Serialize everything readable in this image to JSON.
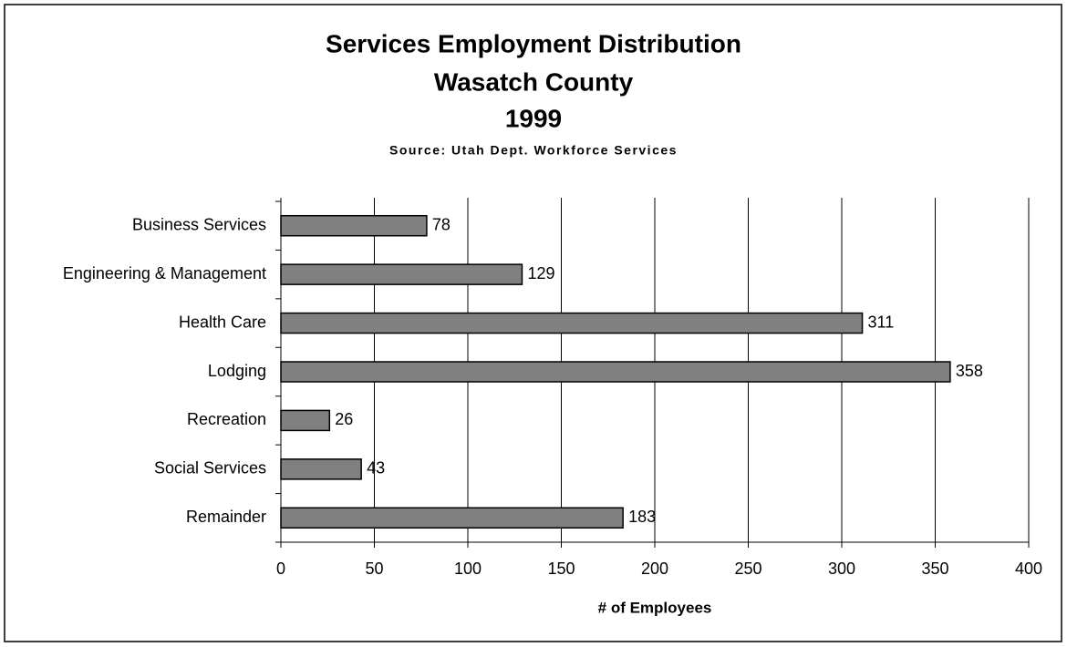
{
  "chart_data": {
    "type": "bar",
    "orientation": "horizontal",
    "title": [
      "Services Employment Distribution",
      "Wasatch County",
      "1999"
    ],
    "subtitle": "Source: Utah Dept. Workforce Services",
    "x_label": "# of Employees",
    "categories": [
      "Business Services",
      "Engineering & Management",
      "Health Care",
      "Lodging",
      "Recreation",
      "Social Services",
      "Remainder"
    ],
    "values": [
      78,
      129,
      311,
      358,
      26,
      43,
      183
    ],
    "color": "#808080",
    "xlim": [
      0,
      400
    ],
    "xticks": [
      0,
      50,
      100,
      150,
      200,
      250,
      300,
      350,
      400
    ],
    "grid": true
  }
}
